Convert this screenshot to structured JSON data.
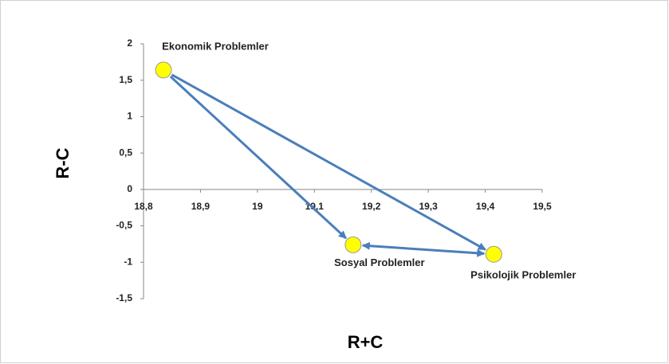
{
  "chart_data": {
    "type": "scatter",
    "x_label": "R+C",
    "y_label": "R-C",
    "labels": [
      "Ekonomik Problemler",
      "Sosyal Problemler",
      "Psikolojik Problemler"
    ],
    "x": [
      18.835,
      19.168,
      19.415
    ],
    "values": [
      1.64,
      -0.76,
      -0.89
    ],
    "color": "#ffff00",
    "xlim": [
      18.8,
      19.5
    ],
    "ylim": [
      -1.5,
      2
    ],
    "xticks": [
      {
        "value": 18.8,
        "label": "18,8"
      },
      {
        "value": 18.9,
        "label": "18,9"
      },
      19,
      {
        "value": 19.1,
        "label": "19,1"
      },
      {
        "value": 19.2,
        "label": "19,2"
      },
      {
        "value": 19.3,
        "label": "19,3"
      },
      {
        "value": 19.4,
        "label": "19,4"
      },
      {
        "value": 19.5,
        "label": "19,5"
      }
    ],
    "yticks": [
      {
        "value": -1.5,
        "label": "-1,5"
      },
      -1,
      {
        "value": -0.5,
        "label": "-0,5"
      },
      0,
      {
        "value": 0.5,
        "label": "0,5"
      },
      1,
      {
        "value": 1.5,
        "label": "1,5"
      },
      2
    ]
  }
}
